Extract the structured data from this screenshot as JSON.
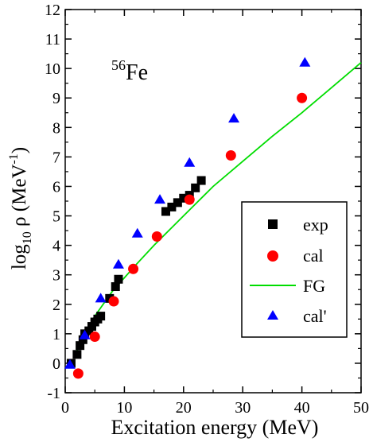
{
  "chart_data": {
    "type": "scatter",
    "annotation": {
      "superscript": "56",
      "text": "Fe"
    },
    "xlabel": "Excitation energy (MeV)",
    "ylabel": {
      "main": "log",
      "sub": "10",
      "rest": " ρ  (MeV",
      "sup": "-1",
      "close": ")"
    },
    "xlim": [
      0,
      50
    ],
    "ylim": [
      -1,
      12
    ],
    "xticks": [
      0,
      10,
      20,
      30,
      40,
      50
    ],
    "yticks": [
      -1,
      0,
      1,
      2,
      3,
      4,
      5,
      6,
      7,
      8,
      9,
      10,
      11,
      12
    ],
    "legend_position": "lower-right",
    "series": [
      {
        "name": "exp",
        "marker": "square",
        "color": "#000000",
        "points": [
          [
            1.0,
            0.0
          ],
          [
            2.0,
            0.3
          ],
          [
            2.5,
            0.6
          ],
          [
            3.0,
            0.8
          ],
          [
            3.3,
            1.0
          ],
          [
            4.0,
            1.1
          ],
          [
            4.5,
            1.25
          ],
          [
            5.0,
            1.4
          ],
          [
            5.5,
            1.5
          ],
          [
            6.0,
            1.6
          ],
          [
            7.5,
            2.2
          ],
          [
            8.5,
            2.6
          ],
          [
            9.0,
            2.85
          ],
          [
            17.0,
            5.15
          ],
          [
            18.0,
            5.3
          ],
          [
            19.0,
            5.45
          ],
          [
            20.0,
            5.6
          ],
          [
            21.0,
            5.7
          ],
          [
            22.0,
            5.95
          ],
          [
            23.0,
            6.2
          ]
        ]
      },
      {
        "name": "cal",
        "marker": "circle",
        "color": "#ff0000",
        "points": [
          [
            2.2,
            -0.35
          ],
          [
            5.0,
            0.9
          ],
          [
            8.2,
            2.1
          ],
          [
            11.5,
            3.2
          ],
          [
            15.5,
            4.3
          ],
          [
            21.0,
            5.55
          ],
          [
            28.0,
            7.05
          ],
          [
            40.0,
            9.0
          ]
        ]
      },
      {
        "name": "FG",
        "marker": "line",
        "color": "#00dd00",
        "points": [
          [
            1.5,
            0.2
          ],
          [
            3,
            0.9
          ],
          [
            5,
            1.6
          ],
          [
            8,
            2.45
          ],
          [
            10,
            2.9
          ],
          [
            12,
            3.35
          ],
          [
            15,
            4.0
          ],
          [
            20,
            5.0
          ],
          [
            25,
            6.0
          ],
          [
            30,
            6.85
          ],
          [
            35,
            7.7
          ],
          [
            40,
            8.5
          ],
          [
            45,
            9.35
          ],
          [
            50,
            10.2
          ]
        ]
      },
      {
        "name": "cal'",
        "marker": "triangle",
        "color": "#0000ff",
        "points": [
          [
            0.8,
            -0.05
          ],
          [
            3.3,
            0.95
          ],
          [
            6.0,
            2.2
          ],
          [
            9.0,
            3.35
          ],
          [
            12.2,
            4.4
          ],
          [
            16.0,
            5.55
          ],
          [
            21.0,
            6.8
          ],
          [
            28.5,
            8.3
          ],
          [
            40.5,
            10.2
          ]
        ]
      }
    ]
  }
}
